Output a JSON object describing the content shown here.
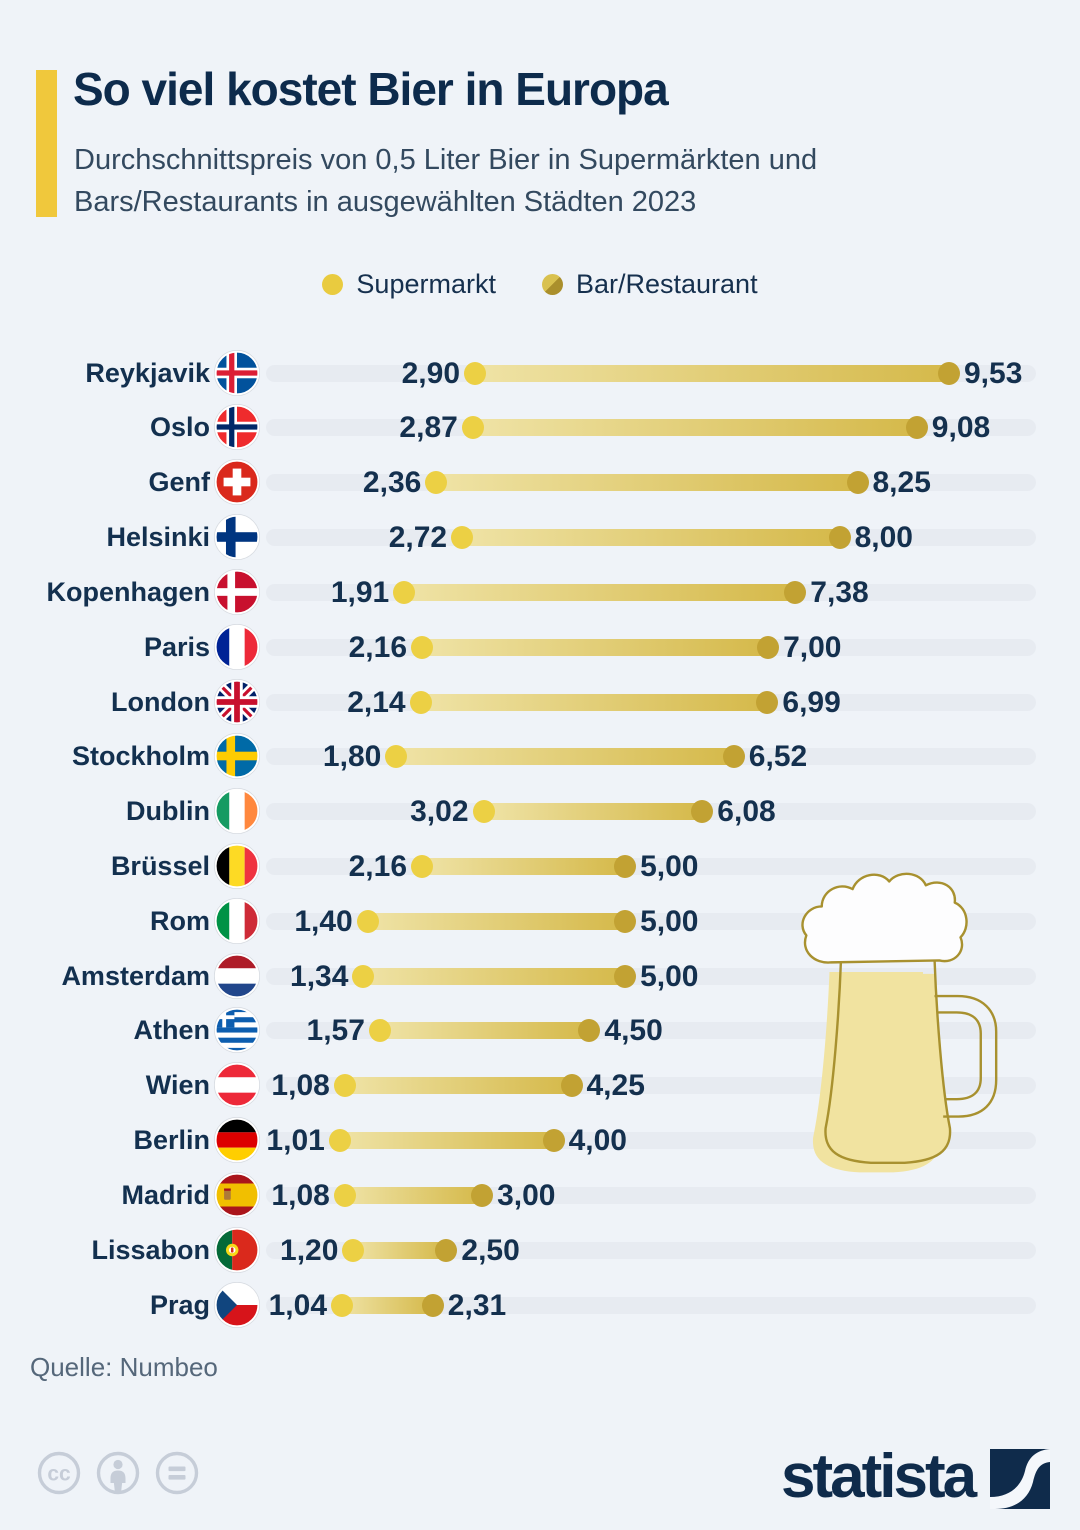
{
  "header": {
    "title": "So viel kostet Bier in Europa",
    "subtitle_line1": "Durchschnittspreis von 0,5 Liter Bier in Supermärkten und",
    "subtitle_line2": "Bars/Restaurants in ausgewählten Städten 2023"
  },
  "legend": {
    "items": [
      {
        "label": "Supermarkt"
      },
      {
        "label": "Bar/Restaurant"
      }
    ]
  },
  "chart_data": {
    "type": "dumbbell",
    "title": "So viel kostet Bier in Europa",
    "subtitle": "Durchschnittspreis von 0,5 Liter Bier in Supermärkten und Bars/Restaurants in ausgewählten Städten 2023",
    "legend": [
      "Supermarkt",
      "Bar/Restaurant"
    ],
    "xlim": [
      0,
      10.75
    ],
    "grid": false,
    "categories": [
      "Reykjavik",
      "Oslo",
      "Genf",
      "Helsinki",
      "Kopenhagen",
      "Paris",
      "London",
      "Stockholm",
      "Dublin",
      "Brüssel",
      "Rom",
      "Amsterdam",
      "Athen",
      "Wien",
      "Berlin",
      "Madrid",
      "Lissabon",
      "Prag"
    ],
    "series": [
      {
        "name": "Supermarkt",
        "values": [
          2.9,
          2.87,
          2.36,
          2.72,
          1.91,
          2.16,
          2.14,
          1.8,
          3.02,
          2.16,
          1.4,
          1.34,
          1.57,
          1.08,
          1.01,
          1.08,
          1.2,
          1.04
        ]
      },
      {
        "name": "Bar/Restaurant",
        "values": [
          9.53,
          9.08,
          8.25,
          8.0,
          7.38,
          7.0,
          6.99,
          6.52,
          6.08,
          5.0,
          5.0,
          5.0,
          4.5,
          4.25,
          4.0,
          3.0,
          2.5,
          2.31
        ]
      }
    ],
    "rows": [
      {
        "city": "Reykjavik",
        "flag": "is",
        "supermarkt": 2.9,
        "bar": 9.53,
        "supermarkt_label": "2,90",
        "bar_label": "9,53"
      },
      {
        "city": "Oslo",
        "flag": "no",
        "supermarkt": 2.87,
        "bar": 9.08,
        "supermarkt_label": "2,87",
        "bar_label": "9,08"
      },
      {
        "city": "Genf",
        "flag": "ch",
        "supermarkt": 2.36,
        "bar": 8.25,
        "supermarkt_label": "2,36",
        "bar_label": "8,25"
      },
      {
        "city": "Helsinki",
        "flag": "fi",
        "supermarkt": 2.72,
        "bar": 8.0,
        "supermarkt_label": "2,72",
        "bar_label": "8,00"
      },
      {
        "city": "Kopenhagen",
        "flag": "dk",
        "supermarkt": 1.91,
        "bar": 7.38,
        "supermarkt_label": "1,91",
        "bar_label": "7,38"
      },
      {
        "city": "Paris",
        "flag": "fr",
        "supermarkt": 2.16,
        "bar": 7.0,
        "supermarkt_label": "2,16",
        "bar_label": "7,00"
      },
      {
        "city": "London",
        "flag": "gb",
        "supermarkt": 2.14,
        "bar": 6.99,
        "supermarkt_label": "2,14",
        "bar_label": "6,99"
      },
      {
        "city": "Stockholm",
        "flag": "se",
        "supermarkt": 1.8,
        "bar": 6.52,
        "supermarkt_label": "1,80",
        "bar_label": "6,52"
      },
      {
        "city": "Dublin",
        "flag": "ie",
        "supermarkt": 3.02,
        "bar": 6.08,
        "supermarkt_label": "3,02",
        "bar_label": "6,08"
      },
      {
        "city": "Brüssel",
        "flag": "be",
        "supermarkt": 2.16,
        "bar": 5.0,
        "supermarkt_label": "2,16",
        "bar_label": "5,00"
      },
      {
        "city": "Rom",
        "flag": "it",
        "supermarkt": 1.4,
        "bar": 5.0,
        "supermarkt_label": "1,40",
        "bar_label": "5,00"
      },
      {
        "city": "Amsterdam",
        "flag": "nl",
        "supermarkt": 1.34,
        "bar": 5.0,
        "supermarkt_label": "1,34",
        "bar_label": "5,00"
      },
      {
        "city": "Athen",
        "flag": "gr",
        "supermarkt": 1.57,
        "bar": 4.5,
        "supermarkt_label": "1,57",
        "bar_label": "4,50"
      },
      {
        "city": "Wien",
        "flag": "at",
        "supermarkt": 1.08,
        "bar": 4.25,
        "supermarkt_label": "1,08",
        "bar_label": "4,25"
      },
      {
        "city": "Berlin",
        "flag": "de",
        "supermarkt": 1.01,
        "bar": 4.0,
        "supermarkt_label": "1,01",
        "bar_label": "4,00"
      },
      {
        "city": "Madrid",
        "flag": "es",
        "supermarkt": 1.08,
        "bar": 3.0,
        "supermarkt_label": "1,08",
        "bar_label": "3,00"
      },
      {
        "city": "Lissabon",
        "flag": "pt",
        "supermarkt": 1.2,
        "bar": 2.5,
        "supermarkt_label": "1,20",
        "bar_label": "2,50"
      },
      {
        "city": "Prag",
        "flag": "cz",
        "supermarkt": 1.04,
        "bar": 2.31,
        "supermarkt_label": "1,04",
        "bar_label": "2,31"
      }
    ]
  },
  "footer": {
    "source": "Quelle: Numbeo",
    "brand": "statista"
  },
  "colors": {
    "background": "#eff3f8",
    "accent_yellow": "#f0c83c",
    "title_navy": "#0d2b4c",
    "subtitle_gray": "#33495f",
    "track_gray": "#e7ebf1",
    "supermarkt_dot": "#ecd044",
    "bar_dot": "#c2a233",
    "connector_start": "#efe3a6",
    "connector_end": "#d5b94a",
    "statista_navy": "#0f2b4b",
    "cc_gray": "#c6cdd8",
    "mug_outline": "#a8912f",
    "beer_fill": "#f1e3a0"
  }
}
